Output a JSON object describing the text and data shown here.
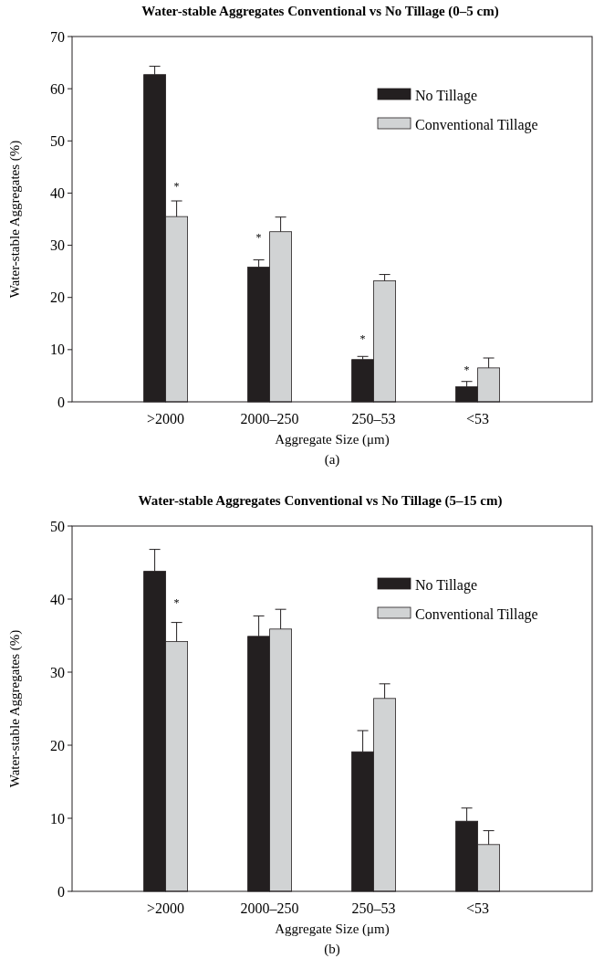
{
  "chart_data": [
    {
      "type": "bar",
      "title": "Water-stable Aggregates Conventional vs No Tillage (0–5 cm)",
      "xlabel": "Aggregate Size (μm)",
      "ylabel": "Water-stable Aggregates (%)",
      "categories": [
        ">2000",
        "2000–250",
        "250–53",
        "<53"
      ],
      "series": [
        {
          "name": "No Tillage",
          "color": "#231f20",
          "values": [
            62.7,
            25.8,
            8.1,
            2.9
          ],
          "errors": [
            [
              62.7,
              64.3
            ],
            [
              25.8,
              27.2
            ],
            [
              8.1,
              8.7
            ],
            [
              2.9,
              3.9
            ]
          ]
        },
        {
          "name": "Conventional Tillage",
          "color": "#d1d3d4",
          "values": [
            35.5,
            32.6,
            23.2,
            6.5
          ],
          "errors": [
            [
              35.5,
              38.5
            ],
            [
              32.6,
              35.4
            ],
            [
              23.2,
              24.4
            ],
            [
              6.5,
              8.4
            ]
          ]
        }
      ],
      "ylim": [
        0,
        70
      ],
      "yticks": [
        0,
        10,
        20,
        30,
        40,
        50,
        60,
        70
      ],
      "grid": false,
      "legend": "top right",
      "annotations": [
        {
          "text": "*",
          "x": ">2000",
          "y": 41.7
        },
        {
          "text": "*",
          "x": "2000–250",
          "y": 31.8
        },
        {
          "text": "*",
          "x": "250–53",
          "y": 12.4
        },
        {
          "text": "*",
          "x": "<53",
          "y": 6.5
        },
        "(a)"
      ]
    },
    {
      "type": "bar",
      "title": "Water-stable Aggregates Conventional vs No Tillage (5–15 cm)",
      "xlabel": "Aggregate Size (μm)",
      "ylabel": "Water-stable Aggregates (%)",
      "categories": [
        ">2000",
        "2000–250",
        "250–53",
        "<53"
      ],
      "series": [
        {
          "name": "No Tillage",
          "color": "#231f20",
          "values": [
            43.8,
            34.9,
            19.1,
            9.6
          ],
          "errors": [
            [
              43.8,
              46.8
            ],
            [
              34.9,
              37.7
            ],
            [
              19.1,
              22.0
            ],
            [
              9.6,
              11.4
            ]
          ]
        },
        {
          "name": "Conventional Tillage",
          "color": "#d1d3d4",
          "values": [
            34.2,
            35.9,
            26.4,
            6.4
          ],
          "errors": [
            [
              34.2,
              36.8
            ],
            [
              35.9,
              38.6
            ],
            [
              26.4,
              28.4
            ],
            [
              6.4,
              8.3
            ]
          ]
        }
      ],
      "ylim": [
        0,
        50
      ],
      "yticks": [
        0,
        10,
        20,
        30,
        40,
        50
      ],
      "grid": false,
      "legend": "top right",
      "annotations": [
        {
          "text": "*",
          "x": ">2000",
          "y": 39.7
        },
        "(b)"
      ]
    }
  ]
}
